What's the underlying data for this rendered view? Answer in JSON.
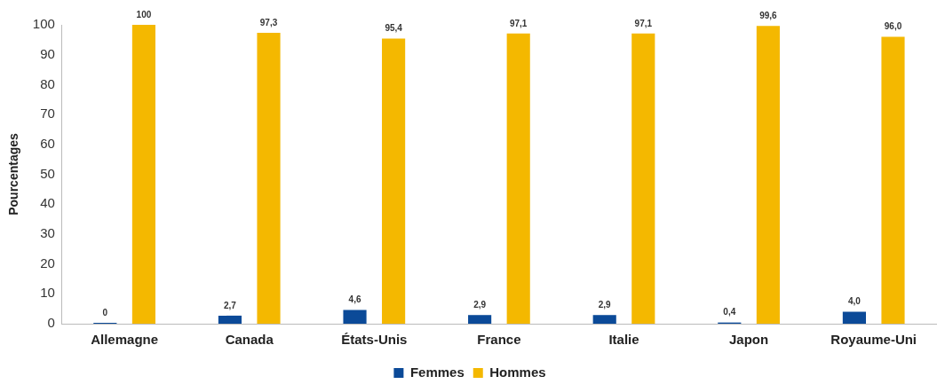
{
  "chart_data": {
    "type": "bar",
    "ylabel": "Pourcentages",
    "categories": [
      "Allemagne",
      "Canada",
      "États-Unis",
      "France",
      "Italie",
      "Japon",
      "Royaume-Uni"
    ],
    "series": [
      {
        "name": "Femmes",
        "color": "#0b4a98",
        "values": [
          0,
          2.7,
          4.6,
          2.9,
          2.9,
          0.4,
          4.0
        ],
        "value_labels": [
          "0",
          "2,7",
          "4,6",
          "2,9",
          "2,9",
          "0,4",
          "4,0"
        ]
      },
      {
        "name": "Hommes",
        "color": "#f4b800",
        "values": [
          100,
          97.3,
          95.4,
          97.1,
          97.1,
          99.6,
          96.0
        ],
        "value_labels": [
          "100",
          "97,3",
          "95,4",
          "97,1",
          "97,1",
          "99,6",
          "96,0"
        ]
      }
    ],
    "ylim": [
      0,
      100
    ],
    "yticks": [
      0,
      10,
      20,
      30,
      40,
      50,
      60,
      70,
      80,
      90,
      100
    ],
    "grid": false,
    "legend": "bottom"
  }
}
